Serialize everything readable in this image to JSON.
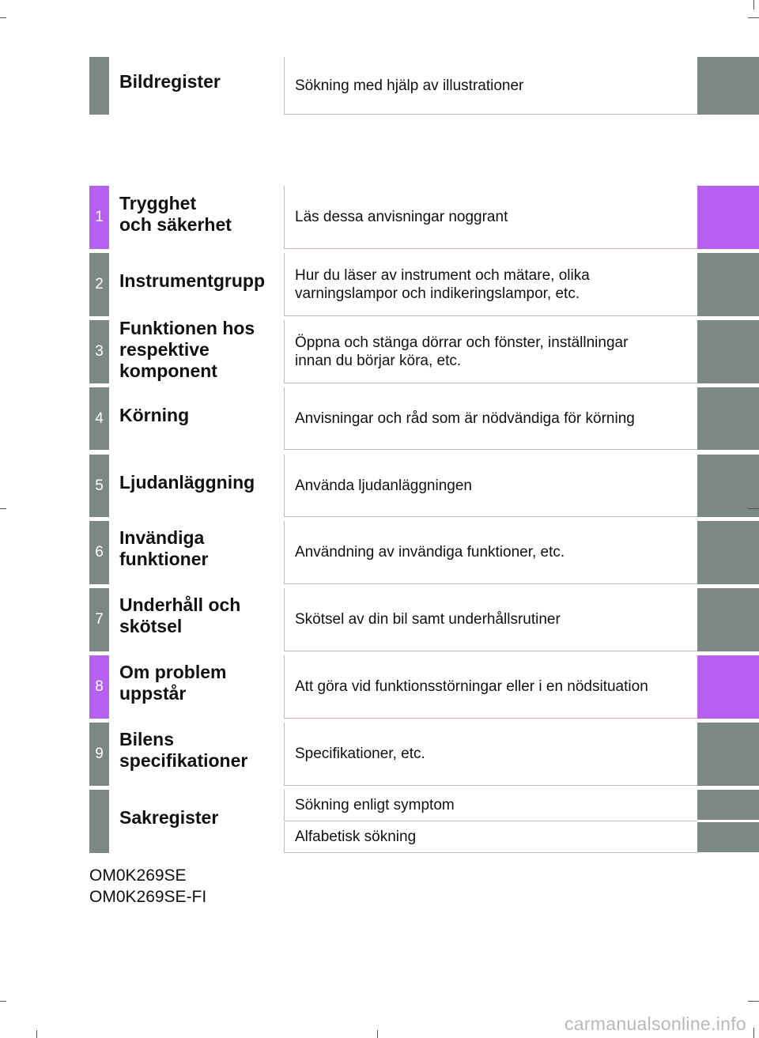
{
  "colors": {
    "gray": "#7c8885",
    "purple": "#b660f0"
  },
  "sections": [
    {
      "num": "",
      "title": "Bildregister",
      "desc": [
        "Sökning med hjälp av illustrationer"
      ],
      "color": "#7c8885"
    },
    {
      "num": "1",
      "title": "Trygghet\noch säkerhet",
      "desc": [
        "Läs dessa anvisningar noggrant"
      ],
      "color": "#b660f0"
    },
    {
      "num": "2",
      "title": "Instrumentgrupp",
      "desc": [
        "Hur du läser av instrument och mätare, olika\nvarningslampor och indikeringslampor, etc."
      ],
      "color": "#7c8885"
    },
    {
      "num": "3",
      "title": "Funktionen hos\nrespektive\nkomponent",
      "desc": [
        "Öppna och stänga dörrar och fönster, inställningar\ninnan du börjar köra, etc."
      ],
      "color": "#7c8885"
    },
    {
      "num": "4",
      "title": "Körning",
      "desc": [
        "Anvisningar och råd som är nödvändiga för körning"
      ],
      "color": "#7c8885"
    },
    {
      "num": "5",
      "title": "Ljudanläggning",
      "desc": [
        "Använda ljudanläggningen"
      ],
      "color": "#7c8885"
    },
    {
      "num": "6",
      "title": "Invändiga\nfunktioner",
      "desc": [
        "Användning av invändiga funktioner, etc."
      ],
      "color": "#7c8885"
    },
    {
      "num": "7",
      "title": "Underhåll och\nskötsel",
      "desc": [
        "Skötsel av din bil samt underhållsrutiner"
      ],
      "color": "#7c8885"
    },
    {
      "num": "8",
      "title": "Om problem\nuppstår",
      "desc": [
        "Att göra vid funktionsstörningar eller i en nödsituation"
      ],
      "color": "#b660f0"
    },
    {
      "num": "9",
      "title": "Bilens\nspecifikationer",
      "desc": [
        "Specifikationer, etc."
      ],
      "color": "#7c8885"
    },
    {
      "num": "",
      "title": "Sakregister",
      "desc": [
        "Sökning enligt symptom",
        "Alfabetisk sökning"
      ],
      "color": "#7c8885"
    }
  ],
  "footer": {
    "code1": "OM0K269SE",
    "code2": "OM0K269SE-FI"
  },
  "watermark": "carmanualsonline.info"
}
